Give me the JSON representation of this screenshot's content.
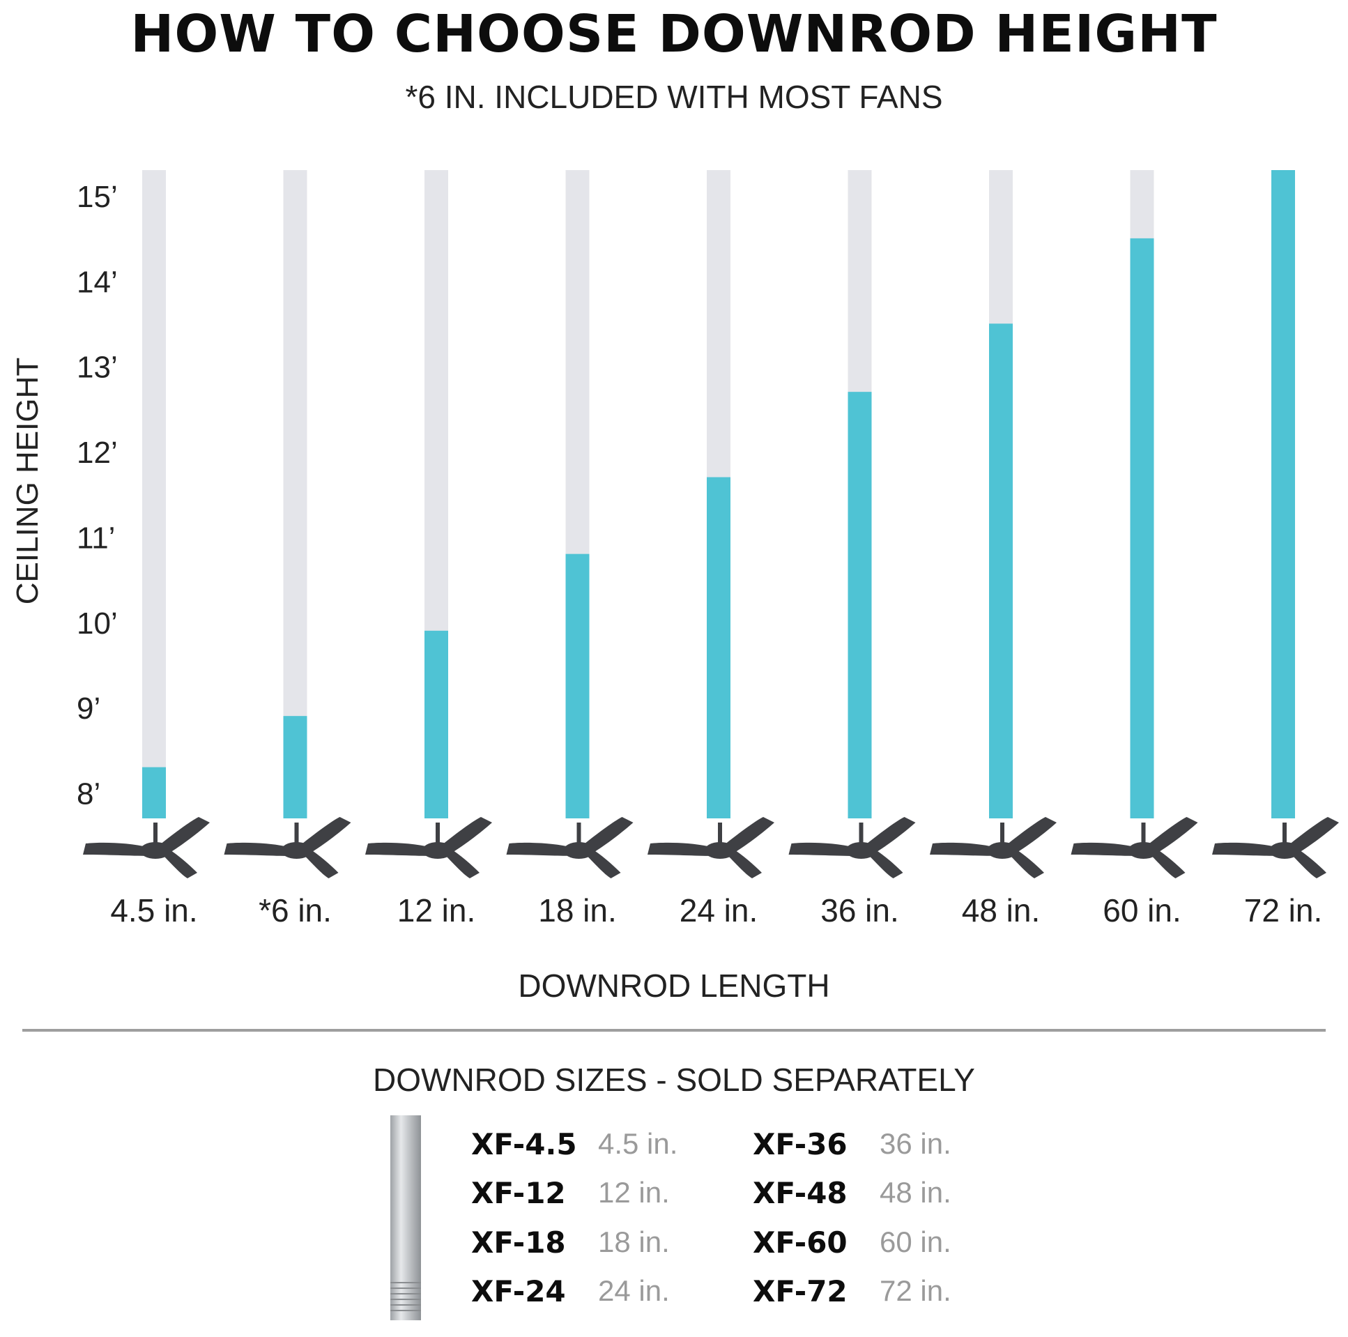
{
  "title": "HOW TO CHOOSE DOWNROD HEIGHT",
  "subtitle": "*6 IN. INCLUDED WITH MOST FANS",
  "colors": {
    "fill": "#4fc3d4",
    "track": "#e4e5ea",
    "fan": "#3f4044"
  },
  "chart_data": {
    "type": "bar",
    "title": "HOW TO CHOOSE DOWNROD HEIGHT",
    "xlabel": "DOWNROD LENGTH",
    "ylabel": "CEILING HEIGHT",
    "categories": [
      "4.5 in.",
      "*6 in.",
      "12 in.",
      "18 in.",
      "24 in.",
      "36 in.",
      "48 in.",
      "60 in.",
      "72 in."
    ],
    "values": [
      8.4,
      9.0,
      10.0,
      10.9,
      11.8,
      12.8,
      13.6,
      14.6,
      15.4
    ],
    "yticks": [
      "15’",
      "14’",
      "13’",
      "12’",
      "11’",
      "10’",
      "9’",
      "8’"
    ],
    "ytick_values": [
      15,
      14,
      13,
      12,
      11,
      10,
      9,
      8
    ],
    "ylim": [
      7.8,
      15.4
    ]
  },
  "sizes": {
    "title": "DOWNROD SIZES - SOLD SEPARATELY",
    "items": [
      {
        "code": "XF-4.5",
        "length": "4.5 in."
      },
      {
        "code": "XF-12",
        "length": "12 in."
      },
      {
        "code": "XF-18",
        "length": "18 in."
      },
      {
        "code": "XF-24",
        "length": "24 in."
      },
      {
        "code": "XF-36",
        "length": "36 in."
      },
      {
        "code": "XF-48",
        "length": "48 in."
      },
      {
        "code": "XF-60",
        "length": "60 in."
      },
      {
        "code": "XF-72",
        "length": "72 in."
      }
    ]
  }
}
